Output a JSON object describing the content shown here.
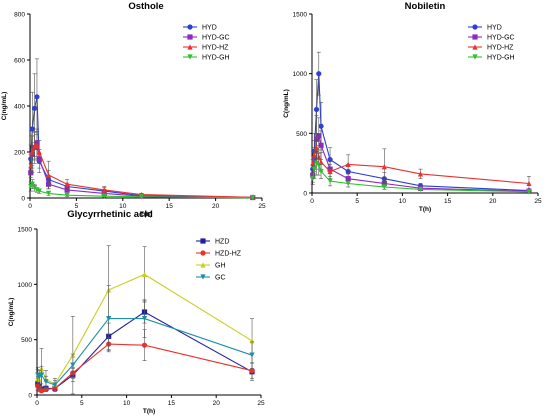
{
  "chart_data": [
    {
      "type": "line",
      "title": "Osthole",
      "xlabel": "T(h)",
      "ylabel": "C(ng/mL)",
      "xlim": [
        0,
        25
      ],
      "ylim": [
        0,
        800
      ],
      "xticks": [
        "0",
        "5",
        "10",
        "15",
        "20",
        "25"
      ],
      "yticks": [
        "0",
        "200",
        "400",
        "600",
        "800"
      ],
      "legend_position": "top-right",
      "grid": false,
      "series": [
        {
          "name": "HYD",
          "color": "#2c3fd6",
          "marker": "circle",
          "x": [
            0.083,
            0.25,
            0.5,
            0.75,
            1,
            2,
            4,
            8,
            12,
            24
          ],
          "y": [
            170,
            300,
            390,
            440,
            160,
            80,
            50,
            30,
            10,
            3
          ],
          "err": [
            60,
            160,
            150,
            165,
            50,
            40,
            15,
            15,
            5,
            2
          ]
        },
        {
          "name": "HYD-GC",
          "color": "#8e2bbf",
          "marker": "square",
          "x": [
            0.083,
            0.25,
            0.5,
            0.75,
            1,
            2,
            4,
            8,
            12,
            24
          ],
          "y": [
            110,
            190,
            220,
            240,
            170,
            60,
            35,
            20,
            8,
            2
          ],
          "err": [
            40,
            80,
            70,
            60,
            40,
            20,
            10,
            10,
            4,
            2
          ]
        },
        {
          "name": "HYD-HZ",
          "color": "#e8322e",
          "marker": "triangle",
          "x": [
            0.083,
            0.25,
            0.5,
            0.75,
            1,
            2,
            4,
            8,
            12,
            24
          ],
          "y": [
            140,
            200,
            225,
            230,
            200,
            100,
            60,
            35,
            15,
            3
          ],
          "err": [
            50,
            70,
            60,
            60,
            50,
            60,
            20,
            15,
            5,
            2
          ]
        },
        {
          "name": "HYD-GH",
          "color": "#2ec12e",
          "marker": "triangle-down",
          "x": [
            0.083,
            0.25,
            0.5,
            0.75,
            1,
            2,
            4,
            8,
            12,
            24
          ],
          "y": [
            50,
            60,
            45,
            35,
            30,
            20,
            12,
            8,
            5,
            1
          ],
          "err": [
            20,
            20,
            15,
            10,
            10,
            8,
            5,
            4,
            3,
            1
          ]
        }
      ]
    },
    {
      "type": "line",
      "title": "Nobiletin",
      "xlabel": "T(h)",
      "ylabel": "C(ng/mL)",
      "xlim": [
        0,
        25
      ],
      "ylim": [
        0,
        1500
      ],
      "xticks": [
        "0",
        "5",
        "10",
        "15",
        "20",
        "25"
      ],
      "yticks": [
        "0",
        "500",
        "1000",
        "1500"
      ],
      "legend_position": "top-right",
      "grid": false,
      "series": [
        {
          "name": "HYD",
          "color": "#2c3fd6",
          "marker": "circle",
          "x": [
            0.083,
            0.25,
            0.5,
            0.75,
            1,
            2,
            4,
            8,
            12,
            24
          ],
          "y": [
            200,
            350,
            700,
            1000,
            560,
            280,
            180,
            120,
            60,
            20
          ],
          "err": [
            80,
            150,
            250,
            180,
            200,
            100,
            60,
            50,
            20,
            10
          ]
        },
        {
          "name": "HYD-GC",
          "color": "#8e2bbf",
          "marker": "square",
          "x": [
            0.083,
            0.25,
            0.5,
            0.75,
            1,
            2,
            4,
            8,
            12,
            24
          ],
          "y": [
            150,
            280,
            450,
            480,
            400,
            200,
            120,
            80,
            40,
            15
          ],
          "err": [
            60,
            100,
            200,
            150,
            120,
            80,
            40,
            30,
            15,
            8
          ]
        },
        {
          "name": "HYD-HZ",
          "color": "#e8322e",
          "marker": "triangle",
          "x": [
            0.083,
            0.25,
            0.5,
            0.75,
            1,
            2,
            4,
            8,
            12,
            24
          ],
          "y": [
            250,
            320,
            380,
            300,
            260,
            180,
            240,
            220,
            160,
            80
          ],
          "err": [
            100,
            120,
            120,
            100,
            80,
            60,
            80,
            150,
            40,
            60
          ]
        },
        {
          "name": "HYD-GH",
          "color": "#2ec12e",
          "marker": "triangle-down",
          "x": [
            0.083,
            0.25,
            0.5,
            0.75,
            1,
            2,
            4,
            8,
            12,
            24
          ],
          "y": [
            120,
            200,
            250,
            230,
            180,
            100,
            80,
            50,
            30,
            10
          ],
          "err": [
            50,
            80,
            100,
            80,
            60,
            40,
            30,
            20,
            10,
            5
          ]
        }
      ]
    },
    {
      "type": "line",
      "title": "Glycyrrhetinic acid",
      "xlabel": "T(h)",
      "ylabel": "C(ng/mL)",
      "xlim": [
        0,
        25
      ],
      "ylim": [
        0,
        1500
      ],
      "xticks": [
        "0",
        "5",
        "10",
        "15",
        "20",
        "25"
      ],
      "yticks": [
        "0",
        "500",
        "1000",
        "1500"
      ],
      "legend_position": "top-center",
      "grid": false,
      "series": [
        {
          "name": "HZD",
          "color": "#1f1fa3",
          "marker": "square",
          "x": [
            0.083,
            0.25,
            0.5,
            1,
            2,
            4,
            8,
            12,
            24
          ],
          "y": [
            100,
            80,
            50,
            60,
            60,
            180,
            530,
            750,
            210
          ],
          "err": [
            50,
            40,
            30,
            20,
            30,
            60,
            120,
            100,
            80
          ]
        },
        {
          "name": "HZD-HZ",
          "color": "#e8322e",
          "marker": "circle",
          "x": [
            0.083,
            0.25,
            0.5,
            1,
            2,
            4,
            8,
            12,
            24
          ],
          "y": [
            80,
            60,
            40,
            50,
            60,
            200,
            460,
            450,
            220
          ],
          "err": [
            40,
            30,
            20,
            20,
            30,
            50,
            60,
            140,
            70
          ]
        },
        {
          "name": "GH",
          "color": "#c8cf1e",
          "marker": "triangle",
          "x": [
            0.083,
            0.25,
            0.5,
            1,
            2,
            4,
            8,
            12,
            24
          ],
          "y": [
            150,
            140,
            240,
            140,
            100,
            360,
            950,
            1090,
            490
          ],
          "err": [
            80,
            80,
            180,
            80,
            50,
            350,
            400,
            250,
            200
          ]
        },
        {
          "name": "GC",
          "color": "#1f8fa8",
          "marker": "triangle-down",
          "x": [
            0.083,
            0.25,
            0.5,
            1,
            2,
            4,
            8,
            12,
            24
          ],
          "y": [
            180,
            160,
            180,
            120,
            90,
            270,
            690,
            690,
            360
          ],
          "err": [
            70,
            60,
            80,
            50,
            40,
            100,
            300,
            170,
            120
          ]
        }
      ]
    }
  ]
}
